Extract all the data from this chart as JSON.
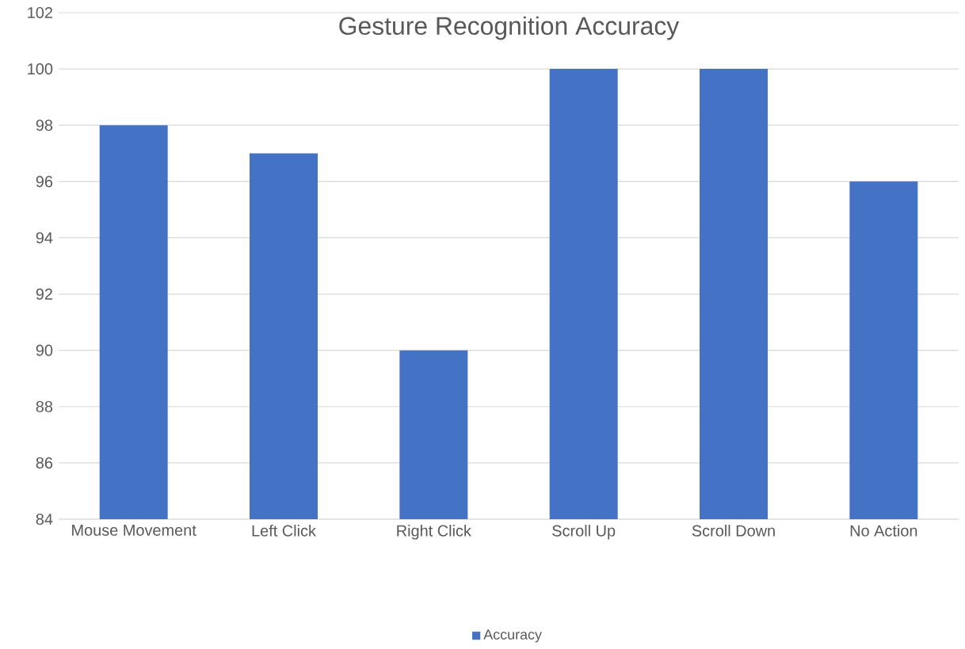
{
  "chart_data": {
    "type": "bar",
    "title": "Gesture Recognition Accuracy",
    "categories": [
      "Mouse Movement",
      "Left Click",
      "Right Click",
      "Scroll Up",
      "Scroll Down",
      "No Action"
    ],
    "series": [
      {
        "name": "Accuracy",
        "color": "#4472c4",
        "values": [
          98,
          97,
          90,
          100,
          100,
          96
        ]
      }
    ],
    "ylim": [
      84,
      102
    ],
    "yticks": [
      84,
      86,
      88,
      90,
      92,
      94,
      96,
      98,
      100,
      102
    ],
    "grid": "y",
    "legend": "bottom"
  }
}
